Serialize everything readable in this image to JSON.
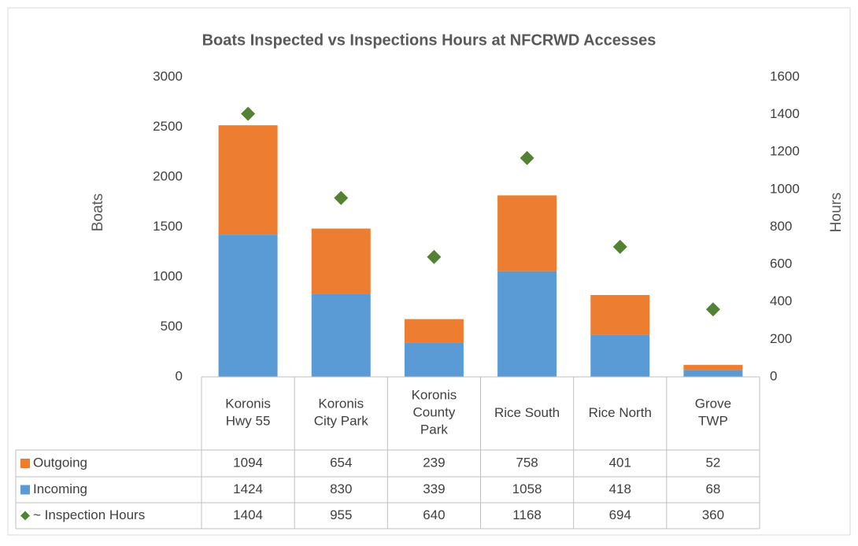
{
  "chart_data": {
    "type": "bar",
    "title": "Boats Inspected vs Inspections Hours at NFCRWD Accesses",
    "y_label": "Boats",
    "y2_label": "Hours",
    "categories": [
      "Koronis\nHwy 55",
      "Koronis\nCity Park",
      "Koronis\nCounty\nPark",
      "Rice South",
      "Rice North",
      "Grove\nTWP"
    ],
    "series": [
      {
        "name": "Outgoing",
        "type": "bar",
        "color": "#ed7d31",
        "values": [
          1094,
          654,
          239,
          758,
          401,
          52
        ]
      },
      {
        "name": "Incoming",
        "type": "bar",
        "color": "#5b9bd5",
        "values": [
          1424,
          830,
          339,
          1058,
          418,
          68
        ]
      },
      {
        "name": "~ Inspection Hours",
        "type": "scatter",
        "axis": "y2",
        "color": "#548235",
        "values": [
          1404,
          955,
          640,
          1168,
          694,
          360
        ]
      }
    ],
    "ylim": [
      0,
      3000
    ],
    "yticks": [
      0,
      500,
      1000,
      1500,
      2000,
      2500,
      3000
    ],
    "y2lim": [
      0,
      1600
    ],
    "y2ticks": [
      0,
      200,
      400,
      600,
      800,
      1000,
      1200,
      1400,
      1600
    ],
    "grid": false,
    "data_table": true
  }
}
